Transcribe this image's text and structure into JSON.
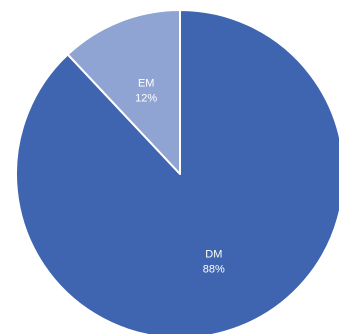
{
  "chart_data": {
    "type": "pie",
    "slices": [
      {
        "label": "DM",
        "value": 88,
        "value_label": "88%",
        "color": "#3F64B0"
      },
      {
        "label": "EM",
        "value": 12,
        "value_label": "12%",
        "color": "#8FA4D3"
      }
    ],
    "start_position": "top",
    "direction": "clockwise",
    "legend": "none",
    "slice_border_color": "#ffffff"
  }
}
